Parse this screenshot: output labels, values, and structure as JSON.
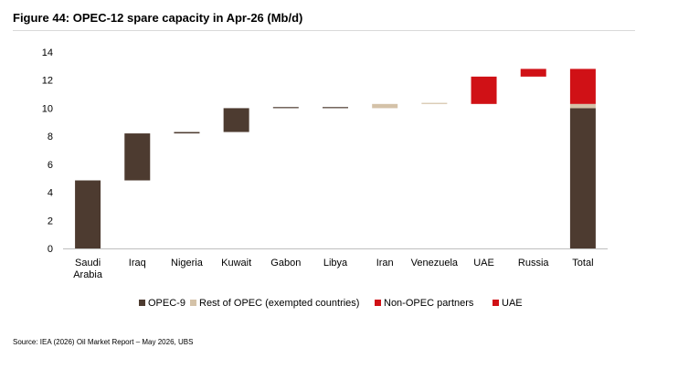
{
  "figure_title": "Figure 44: OPEC-12 spare capacity in Apr-26 (Mb/d)",
  "source": "Source: IEA (2026) Oil Market Report – May 2026, UBS",
  "colors": {
    "opec9": "#4d3b30",
    "rest_of_opec": "#d4c2a8",
    "non_opec_partners": "#d01116",
    "uae": "#d01116",
    "axis": "#bfbfbf"
  },
  "chart_data": {
    "type": "bar",
    "subtype": "waterfall",
    "title": "",
    "xlabel": "",
    "ylabel": "",
    "ylim": [
      0,
      14
    ],
    "yticks": [
      0,
      2,
      4,
      6,
      8,
      10,
      12,
      14
    ],
    "grid": false,
    "legend_position": "bottom",
    "categories": [
      [
        "Saudi",
        "Arabia"
      ],
      [
        "Iraq"
      ],
      [
        "Nigeria"
      ],
      [
        "Kuwait"
      ],
      [
        "Gabon"
      ],
      [
        "Libya"
      ],
      [
        "Iran"
      ],
      [
        "Venezuela"
      ],
      [
        "UAE"
      ],
      [
        "Russia"
      ],
      [
        "Total"
      ]
    ],
    "bars": [
      {
        "category": "Saudi Arabia",
        "series": "OPEC-9",
        "base": 0,
        "value": 4.85
      },
      {
        "category": "Iraq",
        "series": "OPEC-9",
        "base": 4.85,
        "value": 3.35
      },
      {
        "category": "Nigeria",
        "series": "OPEC-9",
        "base": 8.2,
        "value": 0.1
      },
      {
        "category": "Kuwait",
        "series": "OPEC-9",
        "base": 8.3,
        "value": 1.7
      },
      {
        "category": "Gabon",
        "series": "OPEC-9",
        "base": 10.0,
        "value": 0.0
      },
      {
        "category": "Libya",
        "series": "OPEC-9",
        "base": 10.0,
        "value": 0.0
      },
      {
        "category": "Iran",
        "series": "Rest of OPEC (exempted countries)",
        "base": 10.0,
        "value": 0.3
      },
      {
        "category": "Venezuela",
        "series": "Rest of OPEC (exempted countries)",
        "base": 10.3,
        "value": 0.0
      },
      {
        "category": "UAE",
        "series": "UAE",
        "base": 10.3,
        "value": 1.95
      },
      {
        "category": "Russia",
        "series": "Non-OPEC partners",
        "base": 12.25,
        "value": 0.55
      }
    ],
    "total": [
      {
        "series": "OPEC-9",
        "value": 10.0
      },
      {
        "series": "Rest of OPEC (exempted countries)",
        "value": 0.3
      },
      {
        "series": "UAE",
        "value": 2.5
      }
    ],
    "legend": [
      {
        "name": "OPEC-9",
        "color": "#4d3b30"
      },
      {
        "name": "Rest of OPEC (exempted countries)",
        "color": "#d4c2a8"
      },
      {
        "name": "Non-OPEC partners",
        "color": "#d01116"
      },
      {
        "name": "UAE",
        "color": "#d01116"
      }
    ]
  }
}
